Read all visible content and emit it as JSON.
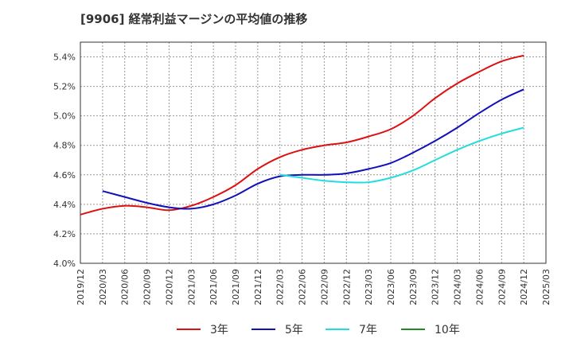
{
  "chart_data": {
    "type": "line",
    "title": "[9906]  経常利益マージンの平均値の推移",
    "xlabel": "",
    "ylabel": "",
    "ylim": [
      4.0,
      5.5
    ],
    "yticks": [
      "4.0%",
      "4.2%",
      "4.4%",
      "4.6%",
      "4.8%",
      "5.0%",
      "5.2%",
      "5.4%"
    ],
    "ytick_values": [
      4.0,
      4.2,
      4.4,
      4.6,
      4.8,
      5.0,
      5.2,
      5.4
    ],
    "x_categories": [
      "2019/12",
      "2020/03",
      "2020/06",
      "2020/09",
      "2020/12",
      "2021/03",
      "2021/06",
      "2021/09",
      "2021/12",
      "2022/03",
      "2022/06",
      "2022/09",
      "2022/12",
      "2023/03",
      "2023/06",
      "2023/09",
      "2023/12",
      "2024/03",
      "2024/06",
      "2024/09",
      "2024/12",
      "2025/03"
    ],
    "grid": true,
    "legend_position": "bottom",
    "series": [
      {
        "name": "3年",
        "color": "#dd1111",
        "values": [
          4.33,
          4.37,
          4.39,
          4.38,
          4.36,
          4.39,
          4.45,
          4.53,
          4.64,
          4.72,
          4.77,
          4.8,
          4.82,
          4.86,
          4.91,
          5.0,
          5.12,
          5.22,
          5.3,
          5.37,
          5.41,
          null
        ]
      },
      {
        "name": "5年",
        "color": "#1111bb",
        "values": [
          null,
          4.49,
          4.45,
          4.41,
          4.38,
          4.37,
          4.4,
          4.46,
          4.54,
          4.59,
          4.6,
          4.6,
          4.61,
          4.64,
          4.68,
          4.75,
          4.83,
          4.92,
          5.02,
          5.11,
          5.18,
          null
        ]
      },
      {
        "name": "7年",
        "color": "#22dddd",
        "values": [
          null,
          null,
          null,
          null,
          null,
          null,
          null,
          null,
          null,
          4.6,
          4.58,
          4.56,
          4.55,
          4.55,
          4.58,
          4.63,
          4.7,
          4.77,
          4.83,
          4.88,
          4.92,
          null
        ]
      },
      {
        "name": "10年",
        "color": "#228822",
        "values": [
          null,
          null,
          null,
          null,
          null,
          null,
          null,
          null,
          null,
          null,
          null,
          null,
          null,
          null,
          null,
          null,
          null,
          null,
          null,
          null,
          null,
          null
        ]
      }
    ]
  }
}
